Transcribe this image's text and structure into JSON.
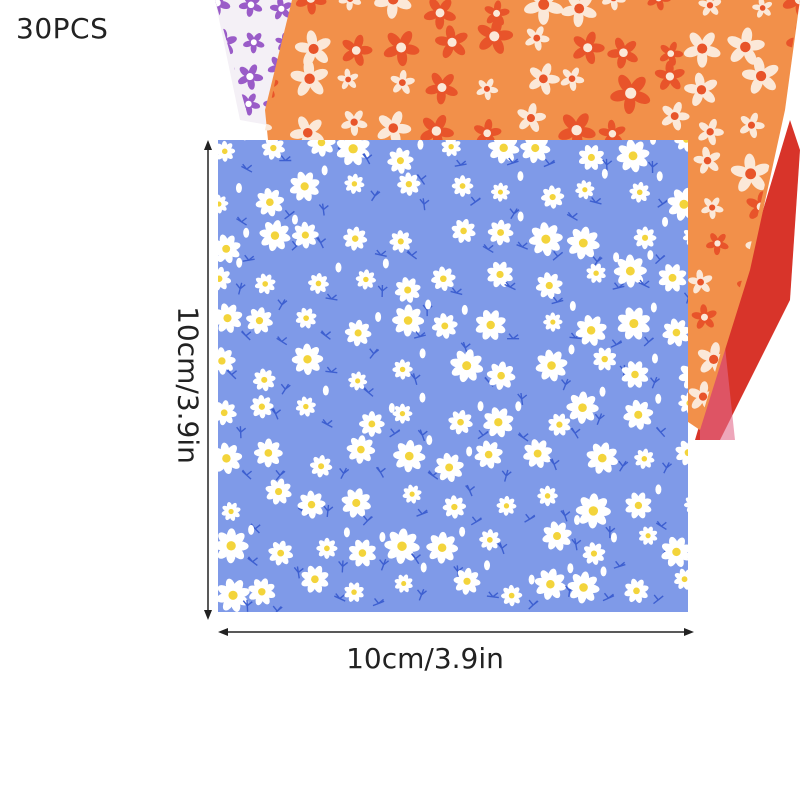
{
  "quantity_label": "30PCS",
  "width_label": "10cm/3.9in",
  "height_label": "10cm/3.9in",
  "colors": {
    "front_fabric": "#7f9ae8",
    "middle_fabric": "#f2904a",
    "back_fabric_red": "#d8342a",
    "back_fabric_white": "#f4f0f6",
    "daisy_petal": "#ffffff",
    "daisy_center": "#f3d43b",
    "stem": "#3d5fd0",
    "dimension_line": "#222222"
  },
  "icons": [
    "daisy-print",
    "orange-flower-print",
    "purple-flower-print",
    "dimension-arrow"
  ]
}
